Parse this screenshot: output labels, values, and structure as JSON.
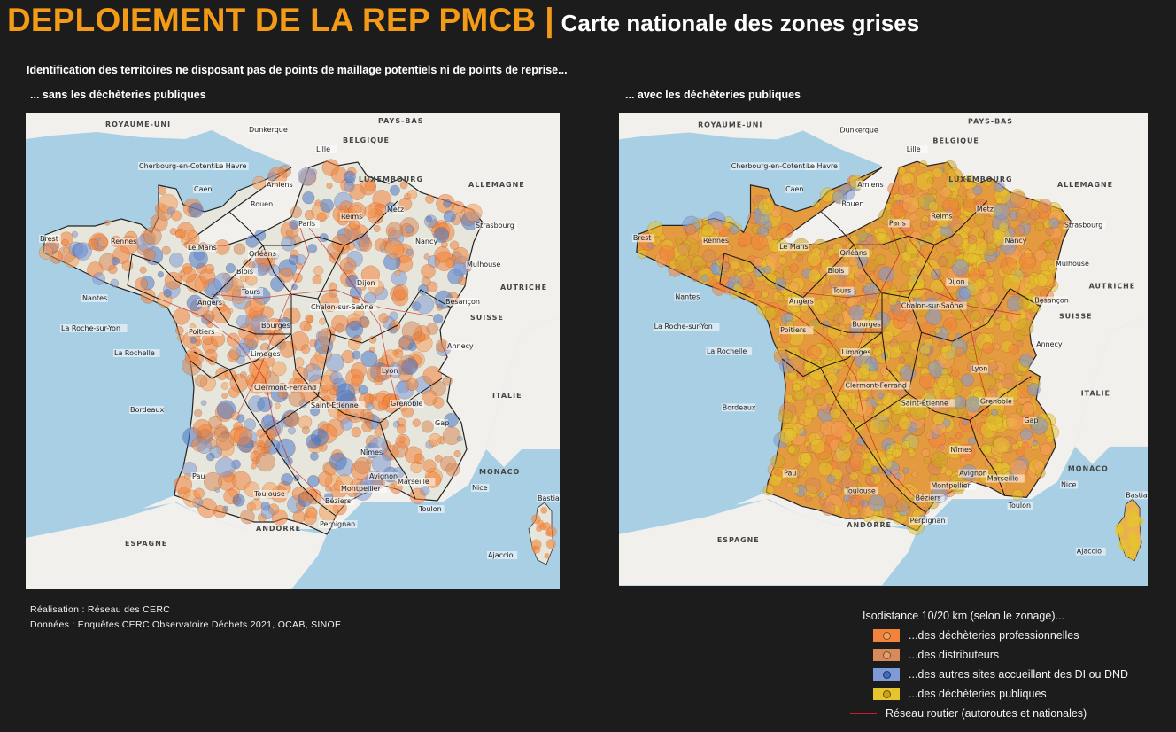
{
  "header": {
    "main_title": "DEPLOIEMENT DE LA REP PMCB",
    "separator": "|",
    "subtitle": "Carte nationale des zones grises"
  },
  "intro_text": "Identification des territoires ne disposant pas de points de maillage potentiels ni de points de reprise...",
  "maps": [
    {
      "caption": "... sans les déchèteries publiques",
      "layers": [
        "dechets-pro",
        "distributeurs",
        "autres-sites"
      ]
    },
    {
      "caption": "... avec les déchèteries publiques",
      "layers": [
        "dechets-pro",
        "distributeurs",
        "autres-sites",
        "dechets-publiques"
      ]
    }
  ],
  "map_labels": {
    "countries": [
      "ROYAUME-UNI",
      "PAYS-BAS",
      "BELGIQUE",
      "LUXEMBOURG",
      "ALLEMAGNE",
      "AUTRICHE",
      "SUISSE",
      "ITALIE",
      "MONACO",
      "ESPAGNE",
      "ANDORRE"
    ],
    "cities": [
      "Dunkerque",
      "Lille",
      "Cherbourg-en-Cotentin",
      "Le Havre",
      "Caen",
      "Amiens",
      "Rouen",
      "Reims",
      "Metz",
      "Strasbourg",
      "Brest",
      "Rennes",
      "Paris",
      "Nancy",
      "Le Mans",
      "Orléans",
      "Mulhouse",
      "Blois",
      "Tours",
      "Dijon",
      "Nantes",
      "Angers",
      "Besançon",
      "Chalon-sur-Saône",
      "La Roche-sur-Yon",
      "Poitiers",
      "Bourges",
      "La Rochelle",
      "Limoges",
      "Annecy",
      "Lyon",
      "Clermont-Ferrand",
      "Bordeaux",
      "Saint-Étienne",
      "Grenoble",
      "Gap",
      "Nîmes",
      "Pau",
      "Avignon",
      "Marseille",
      "Nice",
      "Toulouse",
      "Montpellier",
      "Béziers",
      "Toulon",
      "Perpignan",
      "Bastia",
      "Ajaccio"
    ]
  },
  "credits": {
    "realisation": "Réalisation : Réseau des CERC",
    "donnees": "Données : Enquêtes CERC Observatoire Déchets 2021, OCAB, SINOE"
  },
  "legend": {
    "title": "Isodistance 10/20 km (selon le zonage)...",
    "items": [
      {
        "label": "...des déchèteries professionnelles",
        "color": "#f2833c",
        "dot": "#f5a15c"
      },
      {
        "label": "...des distributeurs",
        "color": "#d98a5a",
        "dot": "#e5a06e"
      },
      {
        "label": "...des autres sites accueillant des DI ou DND",
        "color": "#7f9ad6",
        "dot": "#3d6cc4"
      },
      {
        "label": "...des déchèteries publiques",
        "color": "#e6c42e",
        "dot": "#c9a21c"
      }
    ],
    "road": {
      "label": "Réseau routier (autoroutes et nationales)",
      "color": "#d31a1a"
    }
  }
}
